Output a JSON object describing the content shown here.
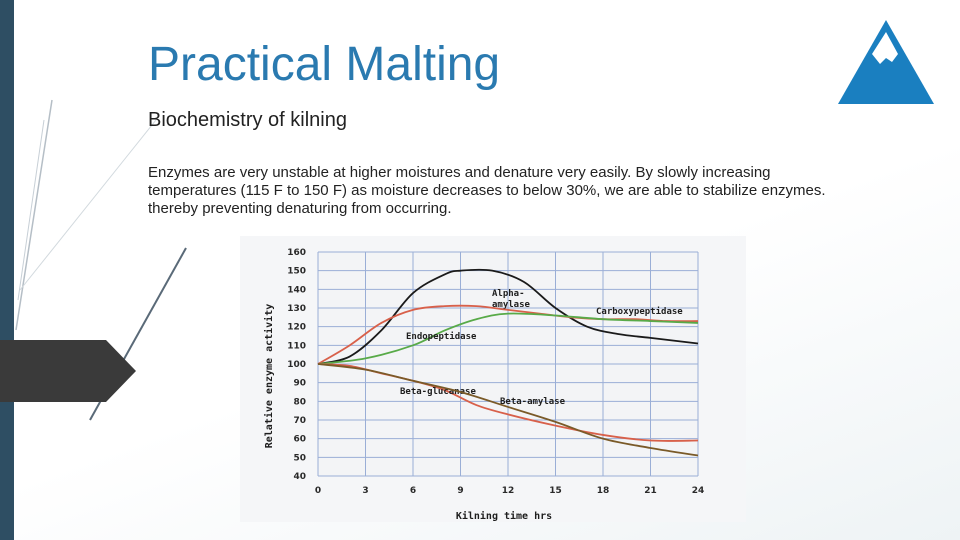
{
  "slide": {
    "title": "Practical Malting",
    "subtitle": "Biochemistry of kilning",
    "body": "Enzymes are very unstable at higher moistures and denature very easily. By slowly increasing temperatures (115 F to 150 F) as moisture decreases to below 30%, we are able to stabilize enzymes. thereby preventing denaturing from occurring."
  },
  "colors": {
    "title": "#2a7ab0",
    "left_bar": "#2e4e63",
    "logo": "#1a7fc0",
    "grid": "#9aaed6"
  },
  "logo_icon": "mountain-peak-icon",
  "chart_data": {
    "type": "line",
    "xlabel": "Kilning time hrs",
    "ylabel": "Relative enzyme activity",
    "x_ticks": [
      0,
      3,
      6,
      9,
      12,
      15,
      18,
      21,
      24
    ],
    "y_ticks": [
      40,
      50,
      60,
      70,
      80,
      90,
      100,
      110,
      120,
      130,
      140,
      150,
      160
    ],
    "xlim": [
      0,
      24
    ],
    "ylim": [
      40,
      160
    ],
    "grid": true,
    "series": [
      {
        "name": "Alpha-amylase",
        "label_lines": [
          "Alpha-",
          "amylase"
        ],
        "color": "#1a1a1a",
        "x": [
          0,
          2,
          4,
          6,
          8,
          9,
          11,
          13,
          15,
          17,
          19,
          21,
          24
        ],
        "y": [
          100,
          104,
          118,
          138,
          148,
          150,
          150,
          144,
          130,
          120,
          116,
          114,
          111
        ]
      },
      {
        "name": "Carboxypeptidase",
        "label_lines": [
          "Carboxypeptidase"
        ],
        "color": "#d8604a",
        "x": [
          0,
          2,
          4,
          6,
          8,
          10,
          12,
          14,
          16,
          18,
          20,
          22,
          24
        ],
        "y": [
          100,
          110,
          122,
          129,
          131,
          131,
          129,
          127,
          125,
          124,
          124,
          123,
          123
        ]
      },
      {
        "name": "Endopeptidase",
        "label_lines": [
          "Endopeptidase"
        ],
        "color": "#58aa48",
        "x": [
          0,
          3,
          6,
          8,
          10,
          12,
          15,
          18,
          21,
          24
        ],
        "y": [
          100,
          103,
          110,
          118,
          124,
          127,
          126,
          124,
          123,
          122
        ]
      },
      {
        "name": "Beta-glucanase",
        "label_lines": [
          "Beta-glucanase"
        ],
        "color": "#d8604a",
        "x": [
          0,
          2,
          4,
          6,
          8,
          10,
          12,
          15,
          18,
          21,
          24
        ],
        "y": [
          100,
          99,
          95,
          91,
          86,
          78,
          73,
          67,
          62,
          59,
          59
        ]
      },
      {
        "name": "Beta-amylase",
        "label_lines": [
          "Beta-amylase"
        ],
        "color": "#7a5a28",
        "x": [
          0,
          3,
          6,
          9,
          12,
          15,
          18,
          21,
          24
        ],
        "y": [
          100,
          97,
          91,
          85,
          77,
          69,
          60,
          55,
          51
        ]
      }
    ]
  }
}
